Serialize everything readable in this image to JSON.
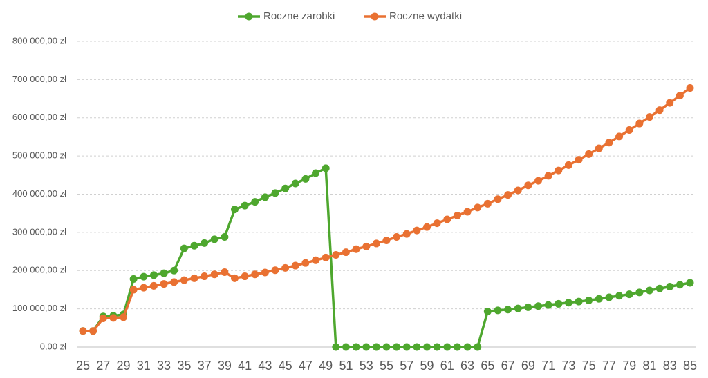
{
  "chart_data": {
    "type": "line",
    "categories": [
      "25",
      null,
      "27",
      null,
      "29",
      null,
      "31",
      null,
      "33",
      null,
      "35",
      null,
      "37",
      null,
      "39",
      null,
      "41",
      null,
      "43",
      null,
      "45",
      null,
      "47",
      null,
      "49",
      null,
      "51",
      null,
      "53",
      null,
      "55",
      null,
      "57",
      null,
      "59",
      null,
      "61",
      null,
      "63",
      null,
      "65",
      null,
      "67",
      null,
      "69",
      null,
      "71",
      null,
      "73",
      null,
      "75",
      null,
      "77",
      null,
      "79",
      null,
      "81",
      null,
      "83",
      null,
      "85"
    ],
    "series": [
      {
        "name": "Roczne zarobki",
        "color": "#4ea72e",
        "values": [
          42000,
          42000,
          80000,
          82000,
          85000,
          178000,
          184000,
          188000,
          193000,
          200000,
          258000,
          265000,
          272000,
          282000,
          288000,
          360000,
          370000,
          380000,
          392000,
          403000,
          415000,
          428000,
          440000,
          455000,
          468000,
          0,
          0,
          0,
          0,
          0,
          0,
          0,
          0,
          0,
          0,
          0,
          0,
          0,
          0,
          0,
          93000,
          96000,
          98000,
          101000,
          104000,
          107000,
          110000,
          113000,
          116000,
          119000,
          122000,
          126000,
          130000,
          134000,
          138000,
          143000,
          148000,
          153000,
          158000,
          163000,
          168000
        ]
      },
      {
        "name": "Roczne wydatki",
        "color": "#e97132",
        "values": [
          42000,
          42000,
          75000,
          76000,
          78000,
          150000,
          155000,
          160000,
          165000,
          170000,
          175000,
          180000,
          185000,
          190000,
          196000,
          180000,
          185000,
          190000,
          195000,
          201000,
          207000,
          213000,
          220000,
          227000,
          234000,
          241000,
          248000,
          256000,
          263000,
          271000,
          279000,
          288000,
          296000,
          305000,
          314000,
          324000,
          334000,
          344000,
          354000,
          365000,
          375000,
          387000,
          398000,
          410000,
          423000,
          435000,
          448000,
          462000,
          476000,
          490000,
          505000,
          520000,
          535000,
          551000,
          568000,
          585000,
          602000,
          620000,
          639000,
          658000,
          678000
        ]
      }
    ],
    "ylim": [
      0,
      800000
    ],
    "yticks": [
      {
        "value": 0,
        "label": "0,00 zł"
      },
      {
        "value": 100000,
        "label": "100 000,00 zł"
      },
      {
        "value": 200000,
        "label": "200 000,00 zł"
      },
      {
        "value": 300000,
        "label": "300 000,00 zł"
      },
      {
        "value": 400000,
        "label": "400 000,00 zł"
      },
      {
        "value": 500000,
        "label": "500 000,00 zł"
      },
      {
        "value": 600000,
        "label": "600 000,00 zł"
      },
      {
        "value": 700000,
        "label": "700 000,00 zł"
      },
      {
        "value": 800000,
        "label": "800 000,00 zł"
      }
    ],
    "grid": true,
    "legend": "top"
  }
}
